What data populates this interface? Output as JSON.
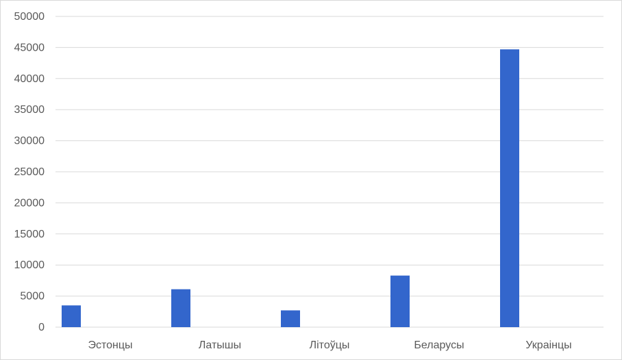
{
  "chart_data": {
    "type": "bar",
    "categories": [
      "Эстонцы",
      "Латышы",
      "Літоўцы",
      "Беларусы",
      "Украінцы"
    ],
    "values": [
      3500,
      6100,
      2700,
      8300,
      44700
    ],
    "ylim": [
      0,
      50000
    ],
    "yticks": [
      0,
      5000,
      10000,
      15000,
      20000,
      25000,
      30000,
      35000,
      40000,
      45000,
      50000
    ],
    "grid": true,
    "legend": "none",
    "bar_color": "#3366cc",
    "grid_color": "#d9d9d9"
  }
}
